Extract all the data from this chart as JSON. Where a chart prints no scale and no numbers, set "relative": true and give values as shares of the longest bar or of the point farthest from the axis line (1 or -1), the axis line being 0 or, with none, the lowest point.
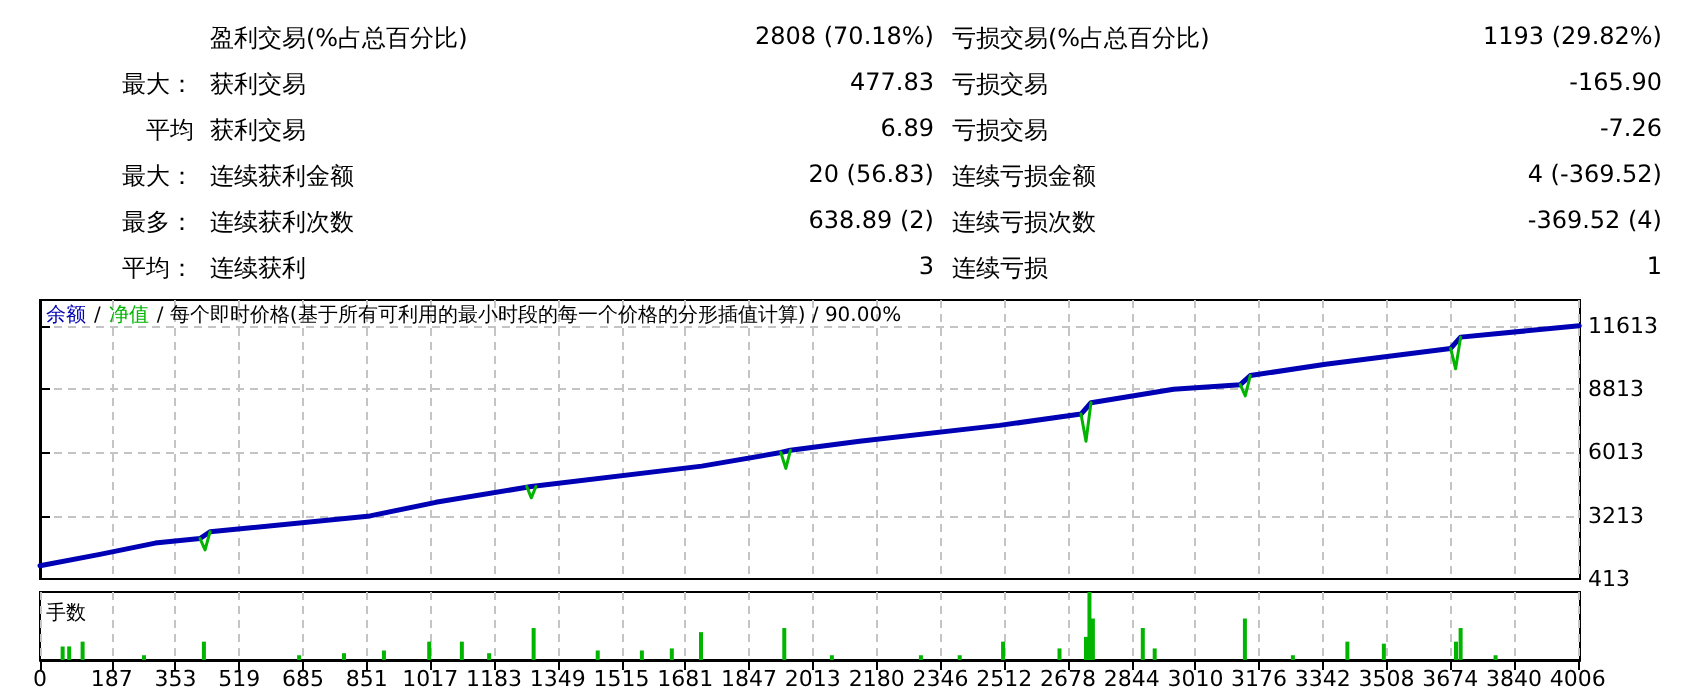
{
  "chart_data": [
    {
      "type": "other",
      "annotations": [
        "盈利交易(%占总百分比)",
        "2808 (70.18%)",
        "亏损交易(%占总百分比)",
        "1193 (29.82%)",
        "最大：",
        "获利交易",
        "477.83",
        "亏损交易",
        "-165.90",
        "平均",
        "获利交易",
        "6.89",
        "亏损交易",
        "-7.26",
        "最大：",
        "连续获利金额",
        "20 (56.83)",
        "连续亏损金额",
        "4 (-369.52)",
        "最多：",
        "连续获利次数",
        "638.89 (2)",
        "连续亏损次数",
        "-369.52 (4)",
        "平均：",
        "连续获利",
        "3",
        "连续亏损",
        "1"
      ]
    },
    {
      "type": "line",
      "annotations": [
        "/",
        "/ 每个即时价格(基于所有可利用的最小时段的每一个价格的分形插值计算) / 90.00%"
      ],
      "xlim": [
        0,
        4012
      ],
      "xticks": [
        0,
        187,
        353,
        519,
        685,
        851,
        1017,
        1183,
        1349,
        1515,
        1681,
        1847,
        2013,
        2180,
        2346,
        2512,
        2678,
        2844,
        3010,
        3176,
        3342,
        3508,
        3674,
        3840,
        4006
      ],
      "ylim": [
        413,
        12740
      ],
      "yticks": [
        413,
        3213,
        6013,
        8813,
        11613
      ],
      "grid": true,
      "tick_labels": "y",
      "series": [
        {
          "name": "余额",
          "color": "#0000b4",
          "x": [
            0,
            156,
            300,
            417,
            443,
            860,
            1031,
            1280,
            1724,
            1930,
            1955,
            2135,
            2500,
            2712,
            2738,
            2953,
            3127,
            3153,
            3349,
            3675,
            3701,
            4010
          ],
          "values": [
            1000,
            1500,
            2000,
            2200,
            2500,
            3200,
            3800,
            4500,
            5400,
            6000,
            6100,
            6500,
            7200,
            7700,
            8200,
            8800,
            9000,
            9400,
            9900,
            10600,
            11100,
            11600
          ]
        },
        {
          "name": "净值",
          "color": "#00b400",
          "x": [
            417,
            430,
            443,
            850,
            1268,
            1280,
            1292,
            1600,
            1930,
            1943,
            1955,
            2400,
            2712,
            2725,
            2738,
            2900,
            3127,
            3140,
            3153,
            3400,
            3675,
            3688,
            3701
          ],
          "values": [
            2200,
            1700,
            2500,
            null,
            4500,
            4000,
            4500,
            null,
            6000,
            5300,
            6100,
            null,
            7700,
            6500,
            8200,
            null,
            9000,
            8500,
            9400,
            null,
            10600,
            9700,
            11100
          ]
        }
      ]
    },
    {
      "type": "bar",
      "ylabel": "手数",
      "relative": true,
      "color": "#00b400",
      "grid": "x",
      "tick_labels": "x",
      "xlim": [
        0,
        4012
      ],
      "xticks": [
        0,
        187,
        353,
        519,
        685,
        851,
        1017,
        1183,
        1349,
        1515,
        1681,
        1847,
        2013,
        2180,
        2346,
        2512,
        2678,
        2844,
        3010,
        3176,
        3342,
        3508,
        3674,
        3840,
        4006
      ],
      "x": [
        59,
        76,
        111,
        271,
        427,
        675,
        792,
        896,
        1014,
        1099,
        1170,
        1286,
        1453,
        1568,
        1646,
        1722,
        1939,
        2063,
        2295,
        2396,
        2509,
        2656,
        2725,
        2734,
        2743,
        2873,
        2904,
        3139,
        3264,
        3406,
        3501,
        3689,
        3701,
        3792
      ],
      "values": [
        0.2,
        0.2,
        0.27,
        0.07,
        0.27,
        0.07,
        0.1,
        0.14,
        0.27,
        0.27,
        0.1,
        0.47,
        0.14,
        0.14,
        0.17,
        0.41,
        0.47,
        0.07,
        0.07,
        0.07,
        0.27,
        0.17,
        0.34,
        1,
        0.61,
        0.47,
        0.17,
        0.61,
        0.07,
        0.27,
        0.24,
        0.27,
        0.47,
        0.07
      ]
    }
  ]
}
